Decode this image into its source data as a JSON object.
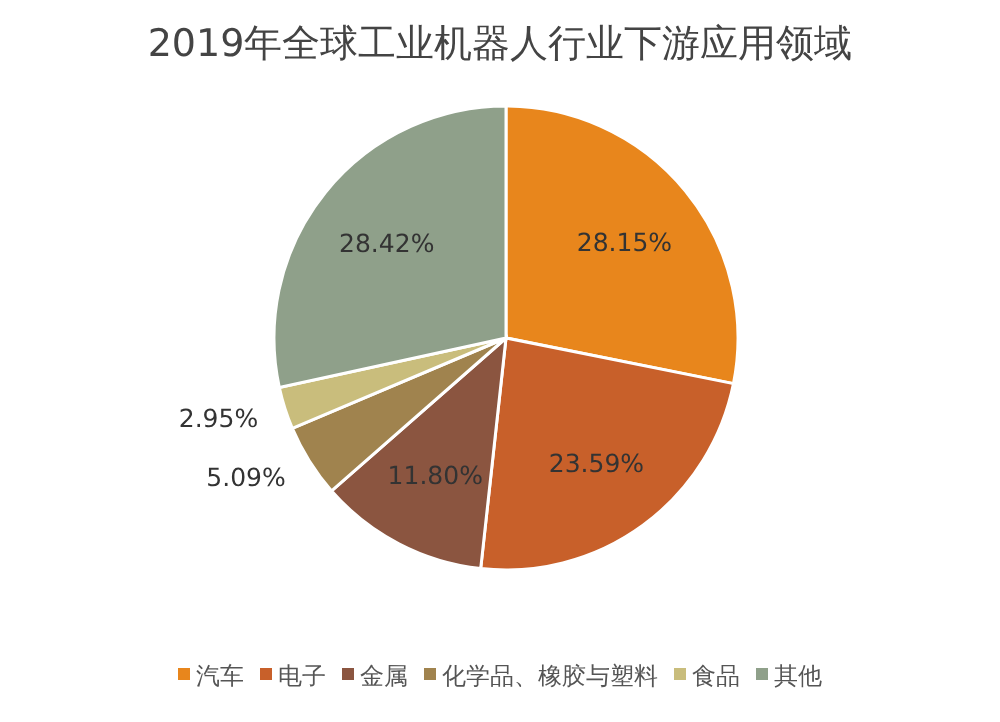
{
  "chart_data": {
    "type": "pie",
    "title": "2019年全球工业机器人行业下游应用领域",
    "categories": [
      "汽车",
      "电子",
      "金属",
      "化学品、橡胶与塑料",
      "食品",
      "其他"
    ],
    "values": [
      28.15,
      23.59,
      11.8,
      5.09,
      2.95,
      28.42
    ],
    "colors": [
      "#e8861c",
      "#c8602a",
      "#8b5540",
      "#a0834e",
      "#c9bd7c",
      "#8fa08a"
    ],
    "value_labels": [
      "28.15%",
      "23.59%",
      "11.80%",
      "5.09%",
      "2.95%",
      "28.42%"
    ],
    "legend": "bottom"
  }
}
